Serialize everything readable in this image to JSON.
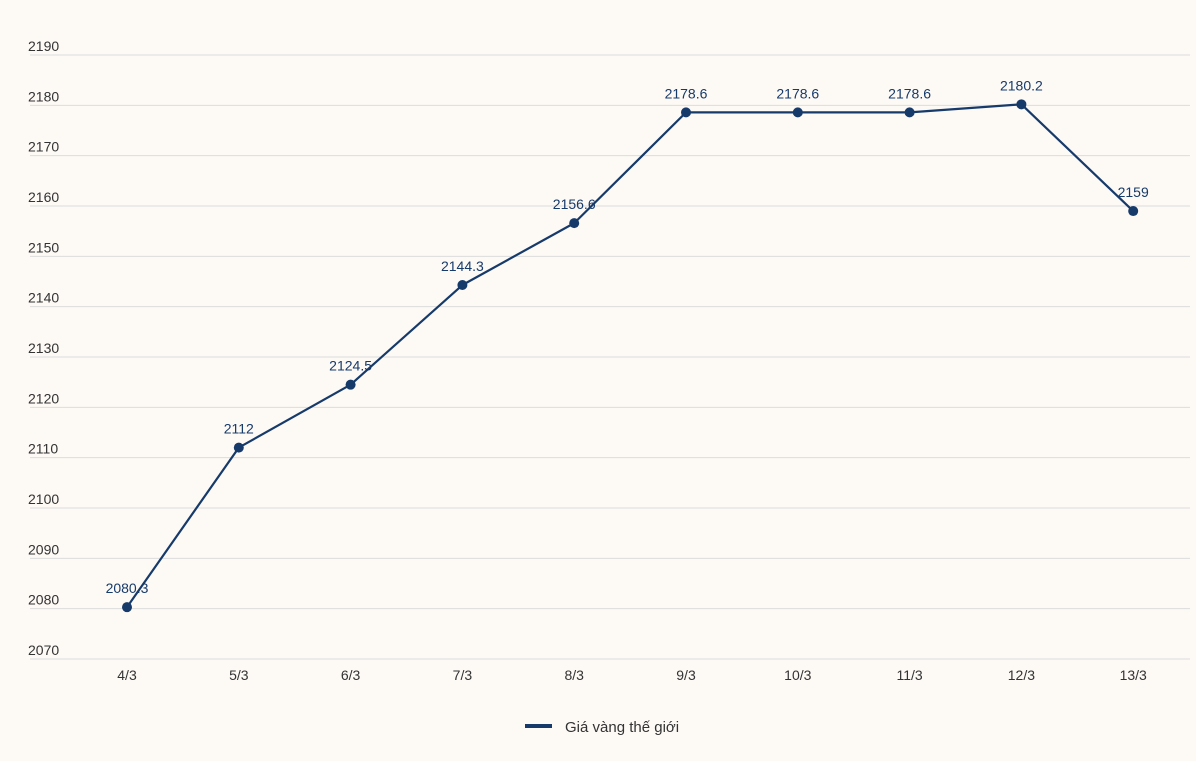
{
  "chart_data": {
    "type": "line",
    "categories": [
      "4/3",
      "5/3",
      "6/3",
      "7/3",
      "8/3",
      "9/3",
      "10/3",
      "11/3",
      "12/3",
      "13/3"
    ],
    "series": [
      {
        "name": "Giá vàng thế giới",
        "values": [
          2080.3,
          2112,
          2124.5,
          2144.3,
          2156.6,
          2178.6,
          2178.6,
          2178.6,
          2180.2,
          2159
        ],
        "labels": [
          "2080.3",
          "2112",
          "2124.5",
          "2144.3",
          "2156.6",
          "2178.6",
          "2178.6",
          "2178.6",
          "2180.2",
          "2159"
        ],
        "color": "#163a6a"
      }
    ],
    "yticks": [
      "2070",
      "2080",
      "2090",
      "2100",
      "2110",
      "2120",
      "2130",
      "2140",
      "2150",
      "2160",
      "2170",
      "2180",
      "2190"
    ],
    "ylim": [
      2070,
      2190
    ],
    "grid": true,
    "legend": "bottom-center",
    "colors": {
      "background": "#fdf9f5",
      "grid": "#dddddd",
      "text": "#333333"
    }
  }
}
